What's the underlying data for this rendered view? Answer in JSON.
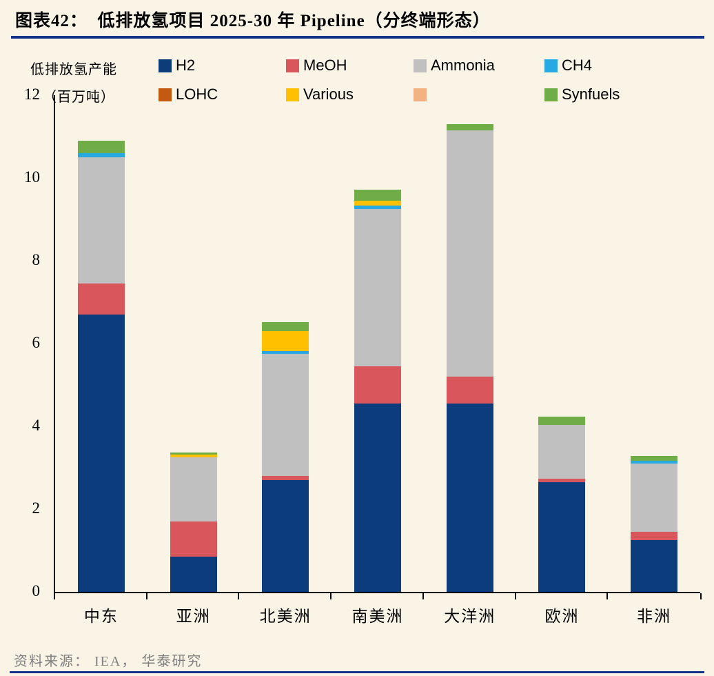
{
  "header": {
    "title": "图表42：  低排放氢项目 2025-30 年 Pipeline（分终端形态）"
  },
  "footer": {
    "source": "资料来源： IEA， 华泰研究"
  },
  "colors": {
    "background": "#faf4e7",
    "rule": "#15338a",
    "axis": "#000000"
  },
  "chart_data": {
    "type": "bar",
    "stacked": true,
    "title": "",
    "ylabel_line1": "低排放氢产能",
    "ylabel_line2": "（百万吨）",
    "ylim": [
      0,
      12
    ],
    "yticks": [
      0,
      2,
      4,
      6,
      8,
      10,
      12
    ],
    "grid": false,
    "legend_position": "top",
    "categories": [
      "中东",
      "亚洲",
      "北美洲",
      "南美洲",
      "大洋洲",
      "欧洲",
      "非洲"
    ],
    "series": [
      {
        "name": "H2",
        "color": "#0c3c7c",
        "values": [
          6.7,
          0.85,
          2.7,
          4.55,
          4.55,
          2.65,
          1.25
        ]
      },
      {
        "name": "MeOH",
        "color": "#d9565c",
        "values": [
          0.75,
          0.85,
          0.1,
          0.9,
          0.65,
          0.08,
          0.2
        ]
      },
      {
        "name": "Ammonia",
        "color": "#c0c0c0",
        "values": [
          3.05,
          1.55,
          2.95,
          3.8,
          5.95,
          1.3,
          1.65
        ]
      },
      {
        "name": "CH4",
        "color": "#29a9e1",
        "values": [
          0.1,
          0,
          0.07,
          0.08,
          0,
          0,
          0.06
        ]
      },
      {
        "name": "LOHC",
        "color": "#c45911",
        "values": [
          0,
          0,
          0,
          0,
          0,
          0,
          0
        ]
      },
      {
        "name": "Various",
        "color": "#ffc000",
        "values": [
          0,
          0.06,
          0.48,
          0.12,
          0,
          0,
          0
        ]
      },
      {
        "name": "",
        "color": "#f4b183",
        "values": [
          0,
          0,
          0,
          0,
          0,
          0,
          0
        ]
      },
      {
        "name": "Synfuels",
        "color": "#70ad47",
        "values": [
          0.3,
          0.05,
          0.22,
          0.27,
          0.15,
          0.2,
          0.12
        ]
      }
    ]
  }
}
